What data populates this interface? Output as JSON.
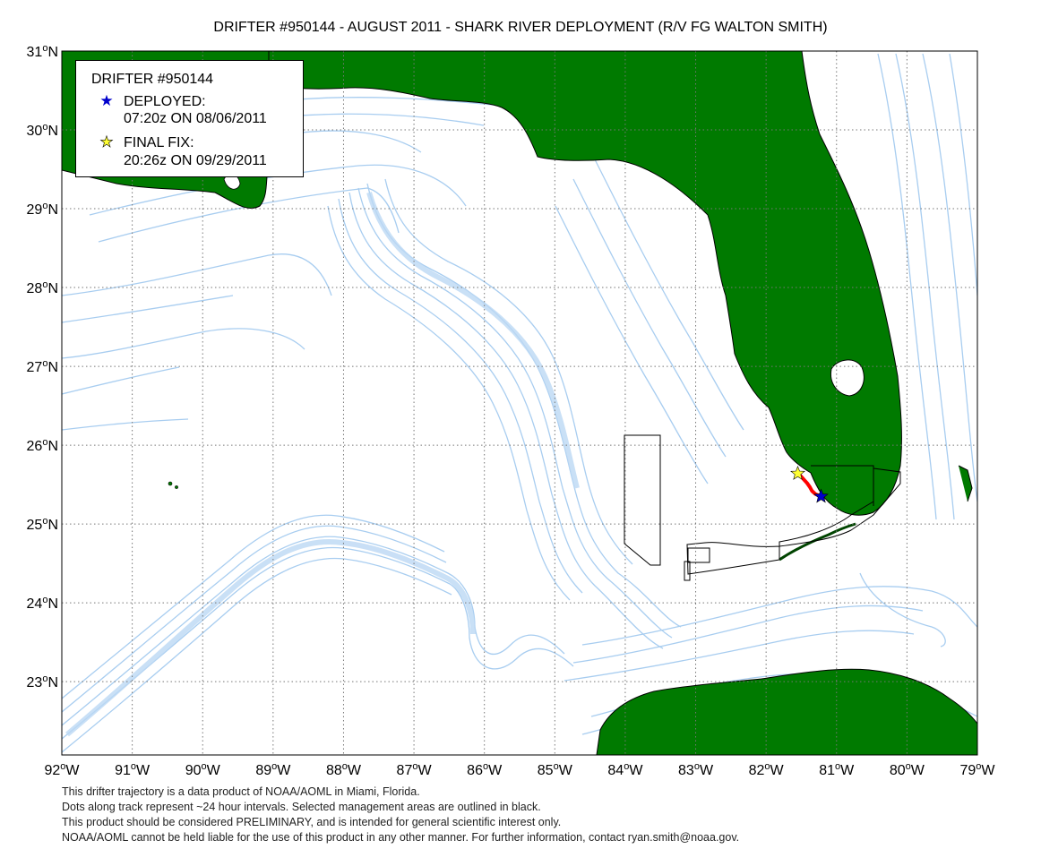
{
  "title": "DRIFTER #950144 - AUGUST 2011 - SHARK RIVER DEPLOYMENT (R/V FG WALTON SMITH)",
  "axes": {
    "lon_labels": [
      "92",
      "91",
      "90",
      "89",
      "88",
      "87",
      "86",
      "85",
      "84",
      "83",
      "82",
      "81",
      "80",
      "79"
    ],
    "lat_labels": [
      "31",
      "30",
      "29",
      "28",
      "27",
      "26",
      "25",
      "24",
      "23"
    ],
    "lon_suffix": "W",
    "lat_suffix": "N",
    "degree_mark": "o",
    "lon_range": [
      -92,
      -79
    ],
    "lat_range": [
      22.07,
      31
    ]
  },
  "legend": {
    "title": "DRIFTER #950144",
    "deployed_label": "DEPLOYED:",
    "deployed_time": "07:20z ON 08/06/2011",
    "final_label": "FINAL FIX:",
    "final_time": "20:26z ON 09/29/2011",
    "deployed_star_color": "#0000cc",
    "final_star_color": "#ffff33"
  },
  "track": {
    "deployed": {
      "lon": -81.22,
      "lat": 25.35
    },
    "final": {
      "lon": -81.55,
      "lat": 25.64
    },
    "points": [
      [
        -81.22,
        25.35
      ],
      [
        -81.3,
        25.38
      ],
      [
        -81.35,
        25.42
      ],
      [
        -81.38,
        25.47
      ],
      [
        -81.42,
        25.52
      ],
      [
        -81.46,
        25.56
      ],
      [
        -81.5,
        25.6
      ],
      [
        -81.55,
        25.64
      ]
    ],
    "color": "#ff0000"
  },
  "colors": {
    "land": "#007a00",
    "bathymetry": "#a8cdf0",
    "grid": "#777777"
  },
  "footer": [
    "This drifter trajectory is a data product of NOAA/AOML in Miami, Florida.",
    "Dots along track represent ~24 hour intervals.  Selected management areas are outlined in black.",
    "This product should be considered PRELIMINARY, and is intended for general scientific interest only.",
    "NOAA/AOML cannot be held liable for the use of this product in any other manner.  For further information, contact ryan.smith@noaa.gov."
  ]
}
